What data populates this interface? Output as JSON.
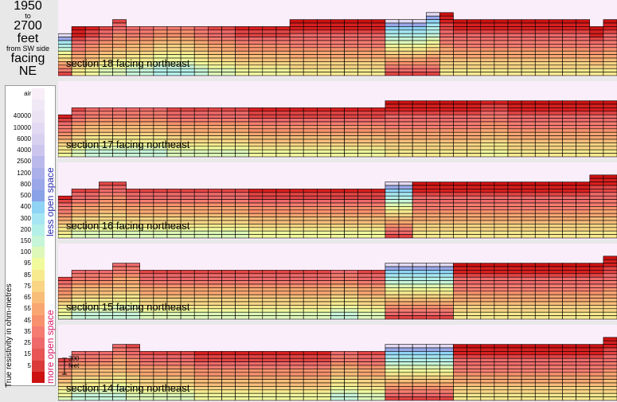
{
  "title": {
    "from": "1950",
    "to_word": "to",
    "to": "2700",
    "unit": "feet",
    "side": "from SW side",
    "facing_word": "facing",
    "facing": "NE"
  },
  "legend": {
    "axis_label": "True resistivity in ohm-metres",
    "less": "less open space",
    "more": "more open space",
    "levels": [
      {
        "label": "air",
        "color": "#f8eef8"
      },
      {
        "label": "",
        "color": "#f0e8f4"
      },
      {
        "label": "40000",
        "color": "#ebe3f3"
      },
      {
        "label": "10000",
        "color": "#e2daf2"
      },
      {
        "label": "6000",
        "color": "#d9d1f0"
      },
      {
        "label": "4000",
        "color": "#ccc6ee"
      },
      {
        "label": "2500",
        "color": "#bbb9ec"
      },
      {
        "label": "1200",
        "color": "#abb0ea"
      },
      {
        "label": "800",
        "color": "#9aa7e8"
      },
      {
        "label": "500",
        "color": "#8aa2e6"
      },
      {
        "label": "400",
        "color": "#8fd3f5"
      },
      {
        "label": "300",
        "color": "#a6e6f2"
      },
      {
        "label": "200",
        "color": "#b4efe8"
      },
      {
        "label": "150",
        "color": "#c7f5d8"
      },
      {
        "label": "100",
        "color": "#ddf8b8"
      },
      {
        "label": "95",
        "color": "#f1fa9c"
      },
      {
        "label": "85",
        "color": "#f7e98e"
      },
      {
        "label": "75",
        "color": "#f8d484"
      },
      {
        "label": "65",
        "color": "#f9bd7a"
      },
      {
        "label": "55",
        "color": "#f9a772"
      },
      {
        "label": "45",
        "color": "#f7916d"
      },
      {
        "label": "35",
        "color": "#f47c70"
      },
      {
        "label": "25",
        "color": "#ee6a6a"
      },
      {
        "label": "15",
        "color": "#e75555"
      },
      {
        "label": "5",
        "color": "#da3a3a"
      },
      {
        "label": "",
        "color": "#cc1111"
      }
    ]
  },
  "scale_bar": {
    "label_top": "300",
    "label_bottom": "feet"
  },
  "chart_data": {
    "type": "heatmap",
    "columns": 41,
    "sections": [
      {
        "label": "section 18 facing northeast",
        "surface": [
          12,
          14,
          14,
          14,
          16,
          14,
          14,
          14,
          14,
          14,
          14,
          14,
          14,
          14,
          14,
          14,
          14,
          16,
          16,
          16,
          16,
          16,
          16,
          16,
          16,
          16,
          16,
          18,
          18,
          16,
          16,
          16,
          16,
          16,
          16,
          16,
          16,
          16,
          16,
          14,
          16
        ],
        "profile": [
          1,
          2,
          3,
          4,
          4,
          5,
          5,
          6,
          6,
          6,
          5,
          4,
          4,
          3,
          3,
          3,
          3,
          2,
          2,
          2,
          2,
          2,
          2,
          2,
          1,
          1,
          1,
          1,
          2,
          2,
          2,
          2,
          2,
          2,
          2,
          2,
          2,
          2,
          2,
          2,
          2
        ]
      },
      {
        "label": "section 17 facing northeast",
        "surface": [
          12,
          14,
          14,
          14,
          14,
          14,
          14,
          14,
          14,
          14,
          14,
          14,
          14,
          14,
          14,
          14,
          14,
          14,
          14,
          14,
          14,
          14,
          14,
          14,
          16,
          16,
          16,
          16,
          16,
          16,
          16,
          16,
          16,
          16,
          16,
          16,
          16,
          16,
          16,
          16,
          16
        ],
        "profile": [
          3,
          4,
          5,
          5,
          5,
          5,
          5,
          5,
          4,
          4,
          4,
          4,
          4,
          4,
          3,
          3,
          3,
          3,
          3,
          3,
          3,
          3,
          3,
          3,
          2,
          2,
          2,
          2,
          2,
          2,
          2,
          3,
          3,
          2,
          2,
          2,
          2,
          2,
          2,
          2,
          2
        ]
      },
      {
        "label": "section 16 facing northeast",
        "surface": [
          12,
          14,
          14,
          16,
          16,
          14,
          14,
          14,
          14,
          14,
          14,
          14,
          14,
          14,
          14,
          14,
          14,
          14,
          14,
          14,
          14,
          14,
          14,
          14,
          16,
          16,
          16,
          16,
          16,
          16,
          16,
          16,
          16,
          16,
          16,
          16,
          16,
          16,
          16,
          18,
          18
        ],
        "profile": [
          3,
          4,
          4,
          4,
          4,
          4,
          4,
          4,
          4,
          4,
          4,
          4,
          4,
          4,
          3,
          3,
          3,
          3,
          3,
          3,
          3,
          3,
          3,
          3,
          1,
          1,
          2,
          2,
          2,
          2,
          2,
          2,
          2,
          2,
          2,
          2,
          2,
          2,
          2,
          2,
          2
        ]
      },
      {
        "label": "section 15 facing northeast",
        "surface": [
          12,
          14,
          14,
          14,
          16,
          16,
          14,
          14,
          14,
          14,
          14,
          14,
          14,
          14,
          14,
          14,
          14,
          14,
          14,
          14,
          14,
          14,
          14,
          14,
          16,
          16,
          16,
          16,
          16,
          16,
          16,
          16,
          16,
          16,
          16,
          16,
          16,
          16,
          16,
          16,
          18
        ],
        "profile": [
          4,
          5,
          5,
          5,
          5,
          5,
          4,
          4,
          4,
          4,
          4,
          4,
          4,
          4,
          4,
          4,
          4,
          4,
          4,
          4,
          5,
          5,
          4,
          4,
          1,
          0,
          0,
          0,
          1,
          2,
          2,
          2,
          2,
          2,
          2,
          2,
          2,
          2,
          2,
          2,
          2
        ]
      },
      {
        "label": "section 14 facing northeast",
        "surface": [
          12,
          14,
          14,
          14,
          16,
          16,
          14,
          14,
          14,
          14,
          14,
          14,
          14,
          14,
          14,
          14,
          14,
          14,
          14,
          14,
          14,
          14,
          14,
          14,
          16,
          16,
          16,
          16,
          16,
          16,
          16,
          16,
          16,
          16,
          16,
          16,
          16,
          16,
          16,
          16,
          18
        ],
        "profile": [
          4,
          5,
          5,
          5,
          5,
          4,
          4,
          4,
          4,
          4,
          3,
          3,
          3,
          3,
          3,
          3,
          3,
          3,
          3,
          3,
          5,
          5,
          4,
          4,
          1,
          0,
          0,
          0,
          1,
          2,
          2,
          2,
          2,
          2,
          2,
          2,
          2,
          2,
          2,
          2,
          2
        ]
      }
    ]
  }
}
